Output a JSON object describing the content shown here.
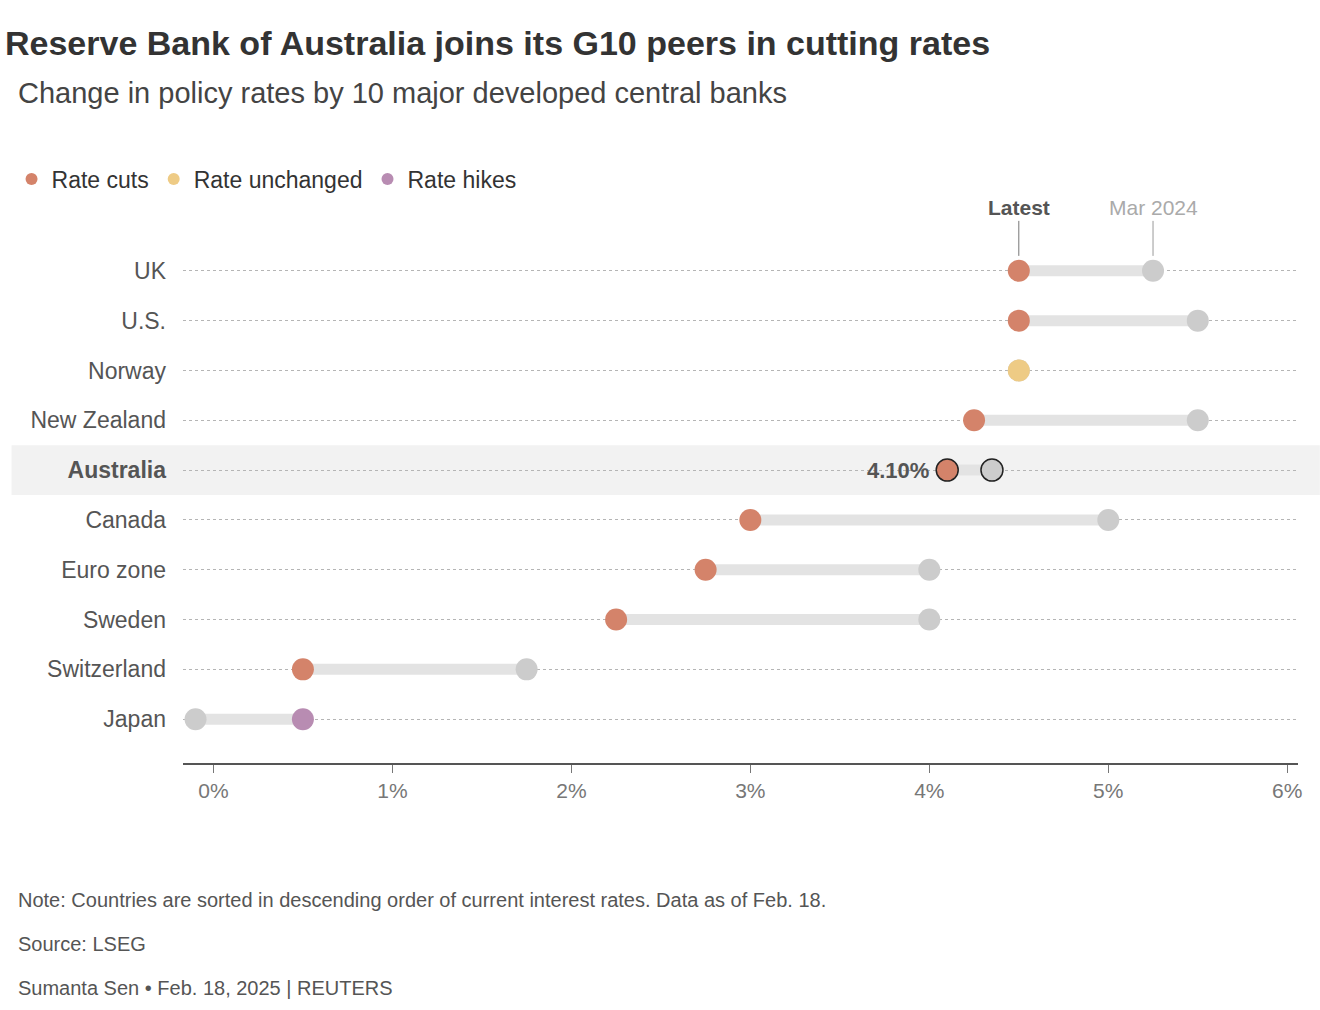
{
  "chart_data": {
    "type": "dumbbell",
    "title": "Reserve Bank of Australia joins its G10 peers in cutting rates",
    "subtitle": "Change in policy rates by 10 major developed central banks",
    "categories": [
      "UK",
      "U.S.",
      "Norway",
      "New Zealand",
      "Australia",
      "Canada",
      "Euro zone",
      "Sweden",
      "Switzerland",
      "Japan"
    ],
    "groups": [
      {
        "name": "Rate cuts",
        "color": "#d4836a"
      },
      {
        "name": "Rate unchanged",
        "color": "#eecb85"
      },
      {
        "name": "Rate hikes",
        "color": "#b88cb2"
      }
    ],
    "change": [
      "Rate cuts",
      "Rate cuts",
      "Rate unchanged",
      "Rate cuts",
      "Rate cuts",
      "Rate cuts",
      "Rate cuts",
      "Rate cuts",
      "Rate cuts",
      "Rate hikes"
    ],
    "series": [
      {
        "name": "Latest",
        "values": [
          4.5,
          4.5,
          4.5,
          4.25,
          4.1,
          3.0,
          2.75,
          2.25,
          0.5,
          0.5
        ]
      },
      {
        "name": "Mar 2024",
        "color": "#cccccc",
        "values": [
          5.25,
          5.5,
          4.5,
          5.5,
          4.35,
          5.0,
          4.0,
          4.0,
          1.75,
          -0.1
        ]
      }
    ],
    "annotations": [
      {
        "category": "Australia",
        "value": 4.1,
        "text": "4.10%"
      }
    ],
    "xlim": [
      -0.17,
      6.06
    ],
    "xticks": [
      {
        "value": 0,
        "label": "0%"
      },
      {
        "value": 1,
        "label": "1%"
      },
      {
        "value": 2,
        "label": "2%"
      },
      {
        "value": 3,
        "label": "3%"
      },
      {
        "value": 4,
        "label": "4%"
      },
      {
        "value": 5,
        "label": "5%"
      },
      {
        "value": 6,
        "label": "6%"
      }
    ],
    "grid": true,
    "note": "Note: Countries are sorted in descending order of current interest rates. Data as of Feb. 18.",
    "source": "Source: LSEG",
    "byline": "Sumanta Sen • Feb. 18, 2025 | REUTERS"
  }
}
